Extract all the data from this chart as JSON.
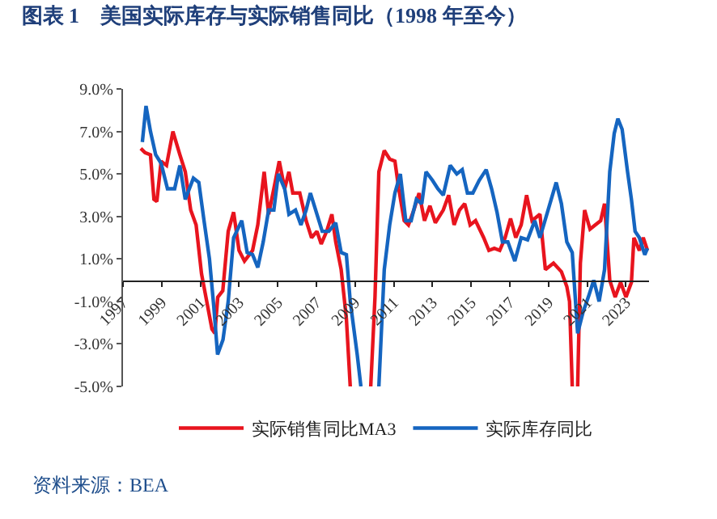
{
  "chart_data": {
    "type": "line",
    "title": "图表 1　美国实际库存与实际销售同比（1998 年至今）",
    "annotations": [
      "资料来源：BEA"
    ],
    "xlim": [
      1997,
      2024.2
    ],
    "xticks": [
      1997,
      1999,
      2001,
      2003,
      2005,
      2007,
      2009,
      2011,
      2013,
      2015,
      2017,
      2019,
      2021,
      2023
    ],
    "ylim": [
      -5,
      9
    ],
    "yticks": [
      {
        "value": -5,
        "label": "-5.0%"
      },
      {
        "value": -3,
        "label": "-3.0%"
      },
      {
        "value": -1,
        "label": "-1.0%"
      },
      {
        "value": 1,
        "label": "1.0%"
      },
      {
        "value": 3,
        "label": "3.0%"
      },
      {
        "value": 5,
        "label": "5.0%"
      },
      {
        "value": 7,
        "label": "7.0%"
      },
      {
        "value": 9,
        "label": "9.0%"
      }
    ],
    "legend": "bottom",
    "marker": "none",
    "line_style": "solid",
    "series": [
      {
        "name": "实际销售同比MA3",
        "color": "#e8141e",
        "x": [
          1997.92,
          1998.14,
          1998.42,
          1998.6,
          1998.75,
          1998.97,
          1999.25,
          1999.58,
          1999.94,
          2000.22,
          2000.5,
          2000.78,
          2001.06,
          2001.33,
          2001.6,
          2001.75,
          2001.9,
          2002.16,
          2002.44,
          2002.72,
          2003.0,
          2003.28,
          2003.7,
          2003.97,
          2004.3,
          2004.53,
          2004.8,
          2005.08,
          2005.36,
          2005.58,
          2005.78,
          2006.14,
          2006.47,
          2006.75,
          2007.03,
          2007.25,
          2007.53,
          2007.8,
          2008.0,
          2008.28,
          2008.55,
          2008.75,
          2009.3,
          2009.81,
          2010.03,
          2010.23,
          2010.51,
          2010.79,
          2011.06,
          2011.26,
          2011.54,
          2011.76,
          2012.04,
          2012.31,
          2012.59,
          2012.87,
          2013.15,
          2013.56,
          2013.84,
          2014.12,
          2014.4,
          2014.67,
          2014.95,
          2015.23,
          2015.65,
          2015.92,
          2016.2,
          2016.48,
          2016.76,
          2017.04,
          2017.31,
          2017.59,
          2017.87,
          2018.15,
          2018.56,
          2018.84,
          2019.26,
          2019.67,
          2019.95,
          2020.09,
          2020.23,
          2020.37,
          2020.51,
          2020.65,
          2020.87,
          2021.15,
          2021.42,
          2021.7,
          2021.9,
          2022.17,
          2022.45,
          2022.73,
          2023.01,
          2023.29,
          2023.42,
          2023.7,
          2023.9,
          2024.12
        ],
        "values": [
          6.2,
          6.0,
          5.9,
          3.8,
          3.7,
          5.6,
          5.4,
          7.0,
          5.9,
          5.1,
          3.3,
          2.6,
          0.3,
          -1.0,
          -2.3,
          -2.5,
          -0.8,
          -0.5,
          2.3,
          3.2,
          1.4,
          0.9,
          1.4,
          2.6,
          5.1,
          3.1,
          4.3,
          5.6,
          4.3,
          5.1,
          4.1,
          4.1,
          2.8,
          2.0,
          2.3,
          1.7,
          2.3,
          3.1,
          1.8,
          0.5,
          -1.8,
          -5.0,
          null,
          -5.0,
          -0.8,
          5.1,
          6.1,
          5.7,
          5.6,
          4.3,
          2.8,
          2.6,
          3.3,
          4.1,
          2.8,
          3.5,
          2.7,
          3.3,
          4.0,
          2.6,
          3.3,
          3.6,
          2.6,
          2.8,
          2.0,
          1.4,
          1.5,
          1.4,
          2.0,
          2.9,
          2.0,
          2.6,
          4.0,
          2.8,
          3.1,
          0.5,
          0.8,
          0.4,
          -0.3,
          -1.0,
          -5.0,
          null,
          -5.0,
          0.8,
          3.3,
          2.4,
          2.6,
          2.8,
          3.6,
          0.0,
          -0.8,
          -0.1,
          -0.8,
          -0.1,
          2.0,
          1.4,
          2.0,
          1.4
        ]
      },
      {
        "name": "实际库存同比",
        "color": "#1565c0",
        "x": [
          1998.0,
          1998.19,
          1998.42,
          1998.69,
          1998.97,
          1999.3,
          1999.67,
          1999.94,
          2000.22,
          2000.64,
          2000.92,
          2001.19,
          2001.47,
          2001.69,
          2001.89,
          2002.17,
          2002.44,
          2002.72,
          2003.14,
          2003.42,
          2003.7,
          2003.97,
          2004.25,
          2004.53,
          2004.8,
          2005.03,
          2005.36,
          2005.58,
          2005.92,
          2006.2,
          2006.47,
          2006.69,
          2007.03,
          2007.3,
          2007.64,
          2008.0,
          2008.28,
          2008.55,
          2008.75,
          2009.11,
          2009.3,
          2009.8,
          2010.23,
          2010.51,
          2010.79,
          2011.06,
          2011.34,
          2011.62,
          2011.9,
          2012.17,
          2012.45,
          2012.67,
          2013.0,
          2013.28,
          2013.56,
          2013.92,
          2014.26,
          2014.54,
          2014.81,
          2015.09,
          2015.42,
          2015.78,
          2016.06,
          2016.34,
          2016.62,
          2016.9,
          2017.26,
          2017.59,
          2017.92,
          2018.29,
          2018.56,
          2018.98,
          2019.4,
          2019.67,
          2019.95,
          2020.23,
          2020.51,
          2020.79,
          2021.06,
          2021.34,
          2021.62,
          2021.9,
          2022.17,
          2022.4,
          2022.59,
          2022.81,
          2023.09,
          2023.29,
          2023.48,
          2023.7,
          2023.98,
          2024.12
        ],
        "values": [
          6.5,
          8.2,
          7.0,
          5.9,
          5.5,
          4.3,
          4.3,
          5.4,
          3.8,
          4.8,
          4.6,
          2.8,
          1.0,
          -1.2,
          -3.5,
          -2.8,
          -1.0,
          2.0,
          2.8,
          1.3,
          1.2,
          0.6,
          1.8,
          3.3,
          3.3,
          5.0,
          4.3,
          3.1,
          3.3,
          2.6,
          3.3,
          4.1,
          3.1,
          2.3,
          2.3,
          2.7,
          1.3,
          1.2,
          -1.0,
          -3.5,
          -5.0,
          null,
          -5.0,
          0.5,
          2.6,
          4.1,
          5.0,
          2.8,
          2.8,
          3.8,
          3.6,
          5.1,
          4.7,
          4.3,
          4.0,
          5.4,
          5.0,
          5.2,
          4.1,
          4.1,
          4.7,
          5.2,
          4.3,
          3.2,
          1.8,
          1.8,
          0.9,
          2.0,
          1.9,
          2.8,
          2.0,
          3.3,
          4.6,
          3.6,
          1.8,
          1.3,
          -2.5,
          -1.5,
          -0.8,
          0.0,
          -1.0,
          0.5,
          5.1,
          6.9,
          7.6,
          7.1,
          5.1,
          3.8,
          2.3,
          2.0,
          1.2,
          1.5
        ]
      }
    ]
  }
}
